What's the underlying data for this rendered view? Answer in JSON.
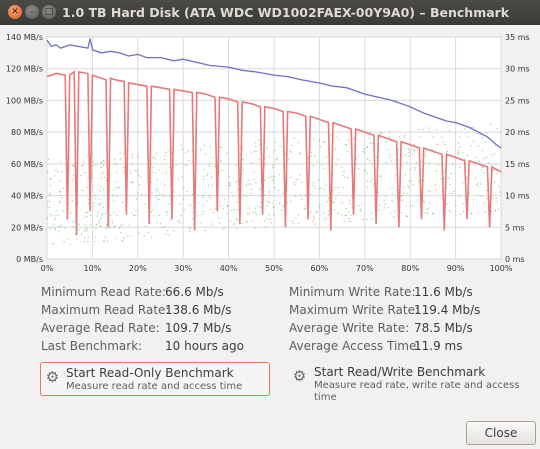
{
  "window": {
    "title": "1.0 TB Hard Disk (ATA WDC WD1002FAEX-00Y9A0) – Benchmark"
  },
  "titlebar_buttons": [
    "close",
    "minimize",
    "maximize"
  ],
  "chart_data": {
    "type": "line",
    "xlabel": "",
    "ylabel": "",
    "x_ticks": [
      "0%",
      "10%",
      "20%",
      "30%",
      "40%",
      "50%",
      "60%",
      "70%",
      "80%",
      "90%",
      "100%"
    ],
    "y_left_ticks": [
      "0 MB/s",
      "20 MB/s",
      "40 MB/s",
      "60 MB/s",
      "80 MB/s",
      "100 MB/s",
      "120 MB/s",
      "140 MB/s"
    ],
    "y_right_ticks": [
      "0 ms",
      "5 ms",
      "10 ms",
      "15 ms",
      "20 ms",
      "25 ms",
      "30 ms",
      "35 ms"
    ],
    "xlim": [
      0,
      100
    ],
    "ylim_left": [
      0,
      140
    ],
    "ylim_right": [
      0,
      35
    ],
    "grid": true,
    "colors": {
      "read": "#6f6fc8",
      "write": "#e8787a",
      "access": "#5ab05a"
    },
    "series": [
      {
        "x": [
          0,
          1,
          2,
          3,
          5,
          7,
          9,
          9.5,
          10,
          12,
          14,
          16,
          18,
          20,
          22,
          25,
          28,
          30,
          33,
          36,
          40,
          43,
          46,
          50,
          53,
          56,
          60,
          63,
          66,
          70,
          73,
          76,
          80,
          83,
          86,
          88,
          90,
          93,
          95,
          97,
          99,
          100
        ],
        "values": [
          138,
          134,
          135,
          133,
          135,
          134,
          133,
          139,
          132,
          130,
          131,
          130,
          128,
          129,
          127,
          127,
          125,
          126,
          124,
          122,
          121,
          119,
          118,
          116,
          115,
          113,
          111,
          109,
          108,
          104,
          102,
          100,
          96,
          92,
          89,
          87,
          86,
          83,
          80,
          77,
          72,
          70
        ]
      },
      {
        "x": [
          0,
          2,
          4,
          4.5,
          5,
          6,
          6.5,
          7,
          9,
          9.5,
          10,
          12,
          13,
          13.5,
          14,
          15,
          17,
          17.5,
          18,
          20,
          22,
          22.5,
          23,
          25,
          27,
          27.5,
          28,
          30,
          32,
          32.5,
          33,
          35,
          37,
          37.5,
          38,
          40,
          42,
          42.5,
          43,
          45,
          47,
          47.5,
          48,
          50,
          52,
          52.5,
          53,
          55,
          57,
          57.5,
          58,
          60,
          62,
          62.5,
          63,
          65,
          67,
          67.5,
          68,
          70,
          72,
          72.5,
          73,
          75,
          77,
          77.5,
          78,
          80,
          82,
          82.5,
          83,
          85,
          87,
          87.5,
          88,
          90,
          92,
          92.5,
          93,
          95,
          97,
          97.5,
          98,
          100
        ],
        "values": [
          115,
          117,
          116,
          25,
          116,
          118,
          15,
          118,
          117,
          30,
          116,
          114,
          113,
          20,
          114,
          113,
          112,
          28,
          111,
          110,
          109,
          22,
          109,
          108,
          107,
          25,
          107,
          106,
          105,
          18,
          105,
          104,
          102,
          30,
          102,
          101,
          99,
          22,
          99,
          98,
          96,
          28,
          96,
          95,
          93,
          20,
          93,
          92,
          90,
          25,
          90,
          88,
          86,
          18,
          86,
          84,
          82,
          28,
          82,
          80,
          78,
          22,
          78,
          76,
          74,
          20,
          74,
          72,
          70,
          25,
          70,
          68,
          66,
          18,
          66,
          64,
          62,
          25,
          62,
          60,
          58,
          20,
          58,
          55
        ]
      },
      {
        "x": [
          0,
          10,
          20,
          30,
          40,
          50,
          60,
          70,
          80,
          90,
          100
        ],
        "values": [
          9,
          9.5,
          10,
          11,
          11.5,
          12,
          12.5,
          13,
          13.5,
          14,
          14.5
        ]
      }
    ]
  },
  "stats": {
    "min_read_label": "Minimum Read Rate:",
    "min_read_value": "66.6 Mb/s",
    "max_read_label": "Maximum Read Rate:",
    "max_read_value": "138.6 Mb/s",
    "avg_read_label": "Average Read Rate:",
    "avg_read_value": "109.7 Mb/s",
    "last_bench_label": "Last Benchmark:",
    "last_bench_value": "10 hours ago",
    "min_write_label": "Minimum Write Rate:",
    "min_write_value": "11.6 Mb/s",
    "max_write_label": "Maximum Write Rate:",
    "max_write_value": "119.4 Mb/s",
    "avg_write_label": "Average Write Rate:",
    "avg_write_value": "78.5 Mb/s",
    "avg_access_label": "Average Access Time:",
    "avg_access_value": "11.9 ms"
  },
  "buttons": {
    "read_only_title": "Start Read-Only Benchmark",
    "read_only_sub": "Measure read rate and access time",
    "read_write_title": "Start Read/Write Benchmark",
    "read_write_sub1": "Measure read rate, write rate and access",
    "read_write_sub2": "time",
    "close_label": "Close"
  },
  "icons": {
    "benchmark": "gear-icon"
  }
}
